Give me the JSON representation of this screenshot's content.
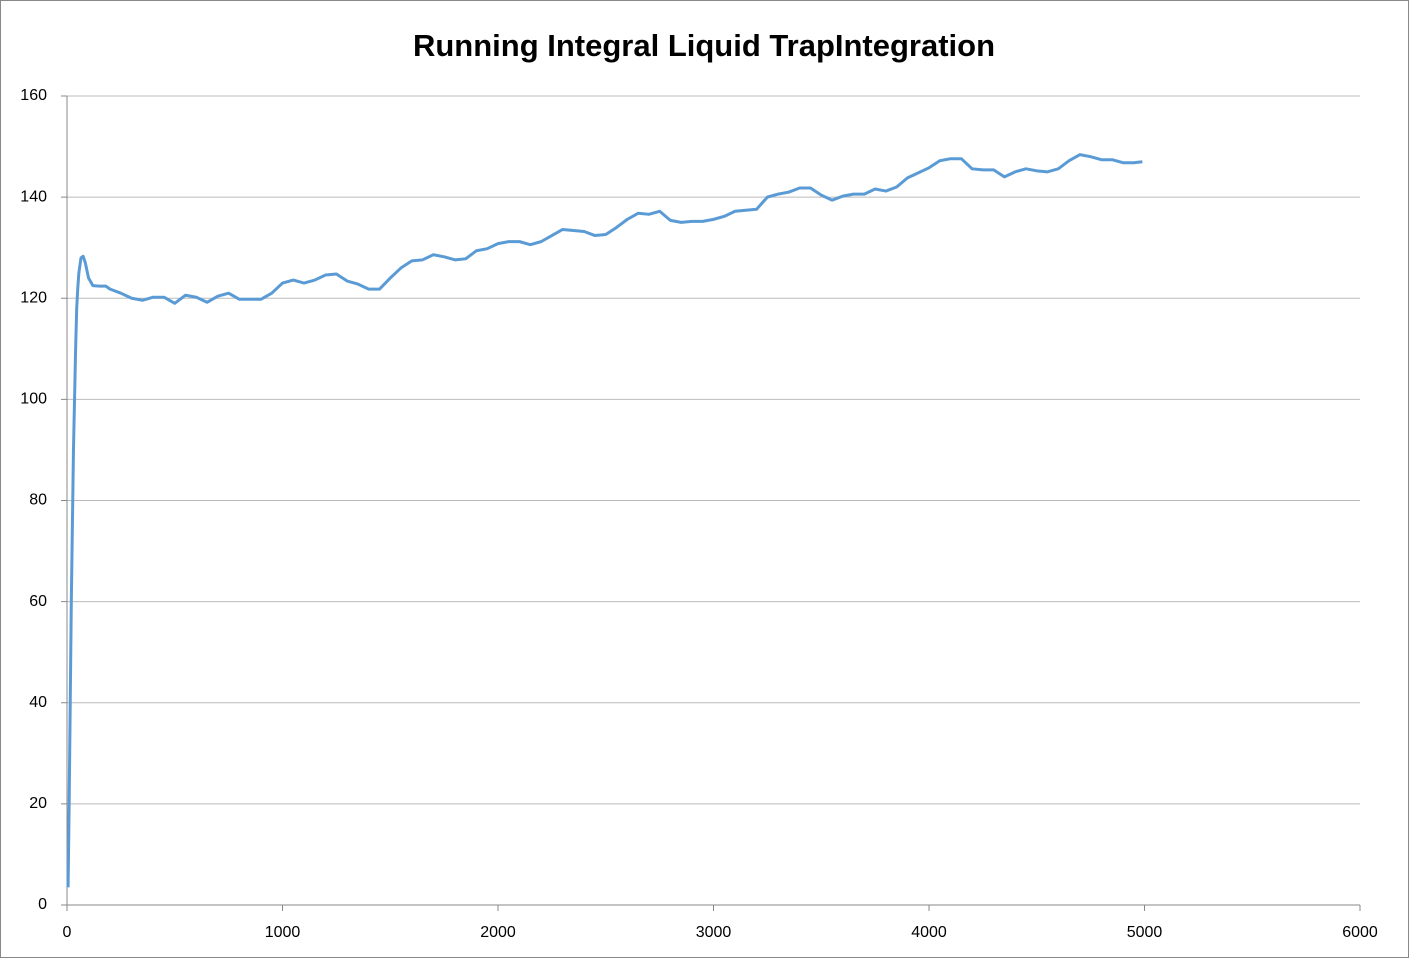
{
  "chart_data": {
    "type": "line",
    "title": "Running Integral Liquid TrapIntegration",
    "x": [
      5,
      10,
      15,
      20,
      25,
      30,
      35,
      40,
      45,
      50,
      55,
      65,
      75,
      85,
      100,
      120,
      150,
      180,
      200,
      250,
      300,
      350,
      400,
      450,
      500,
      550,
      600,
      650,
      700,
      750,
      800,
      850,
      900,
      950,
      1000,
      1050,
      1100,
      1150,
      1200,
      1250,
      1300,
      1350,
      1400,
      1450,
      1500,
      1550,
      1600,
      1650,
      1700,
      1750,
      1800,
      1850,
      1900,
      1950,
      2000,
      2050,
      2100,
      2150,
      2200,
      2250,
      2300,
      2350,
      2400,
      2450,
      2500,
      2550,
      2600,
      2650,
      2700,
      2750,
      2800,
      2850,
      2900,
      2950,
      3000,
      3050,
      3100,
      3150,
      3200,
      3250,
      3300,
      3350,
      3400,
      3450,
      3500,
      3550,
      3600,
      3650,
      3700,
      3750,
      3800,
      3850,
      3900,
      3950,
      4000,
      4050,
      4100,
      4150,
      4200,
      4250,
      4300,
      4350,
      4400,
      4450,
      4500,
      4550,
      4600,
      4650,
      4700,
      4750,
      4800,
      4850,
      4900,
      4950,
      4990
    ],
    "series": [
      {
        "name": "Running Integral",
        "color": "#5b9bd5",
        "values": [
          3.5,
          20,
          40,
          60,
          75,
          90,
          100,
          110,
          118,
          122,
          125,
          128,
          128.3,
          127,
          124,
          122.5,
          122.4,
          122.4,
          121.8,
          121,
          120,
          119.6,
          120.2,
          120.2,
          119,
          120.6,
          120.2,
          119.2,
          120.4,
          121,
          119.8,
          119.8,
          119.8,
          121,
          123,
          123.6,
          123,
          123.6,
          124.6,
          124.8,
          123.4,
          122.8,
          121.8,
          121.8,
          124,
          126,
          127.4,
          127.6,
          128.6,
          128.2,
          127.6,
          127.8,
          129.4,
          129.8,
          130.8,
          131.2,
          131.2,
          130.6,
          131.2,
          132.4,
          133.6,
          133.4,
          133.2,
          132.4,
          132.6,
          134,
          135.6,
          136.8,
          136.6,
          137.2,
          135.4,
          135,
          135.2,
          135.2,
          135.6,
          136.2,
          137.2,
          137.4,
          137.6,
          140,
          140.6,
          141,
          141.8,
          141.8,
          140.4,
          139.4,
          140.2,
          140.6,
          140.6,
          141.6,
          141.2,
          142,
          143.8,
          144.8,
          145.8,
          147.2,
          147.6,
          147.6,
          145.6,
          145.4,
          145.4,
          144,
          145,
          145.6,
          145.2,
          145,
          145.6,
          147.2,
          148.4,
          148,
          147.4,
          147.4,
          146.8,
          146.8,
          147
        ]
      }
    ],
    "xlim": [
      0,
      6000
    ],
    "xticks": [
      0,
      1000,
      2000,
      3000,
      4000,
      5000,
      6000
    ],
    "ylim": [
      0,
      160
    ],
    "yticks": [
      0,
      20,
      40,
      60,
      80,
      100,
      120,
      140,
      160
    ],
    "grid": true
  }
}
